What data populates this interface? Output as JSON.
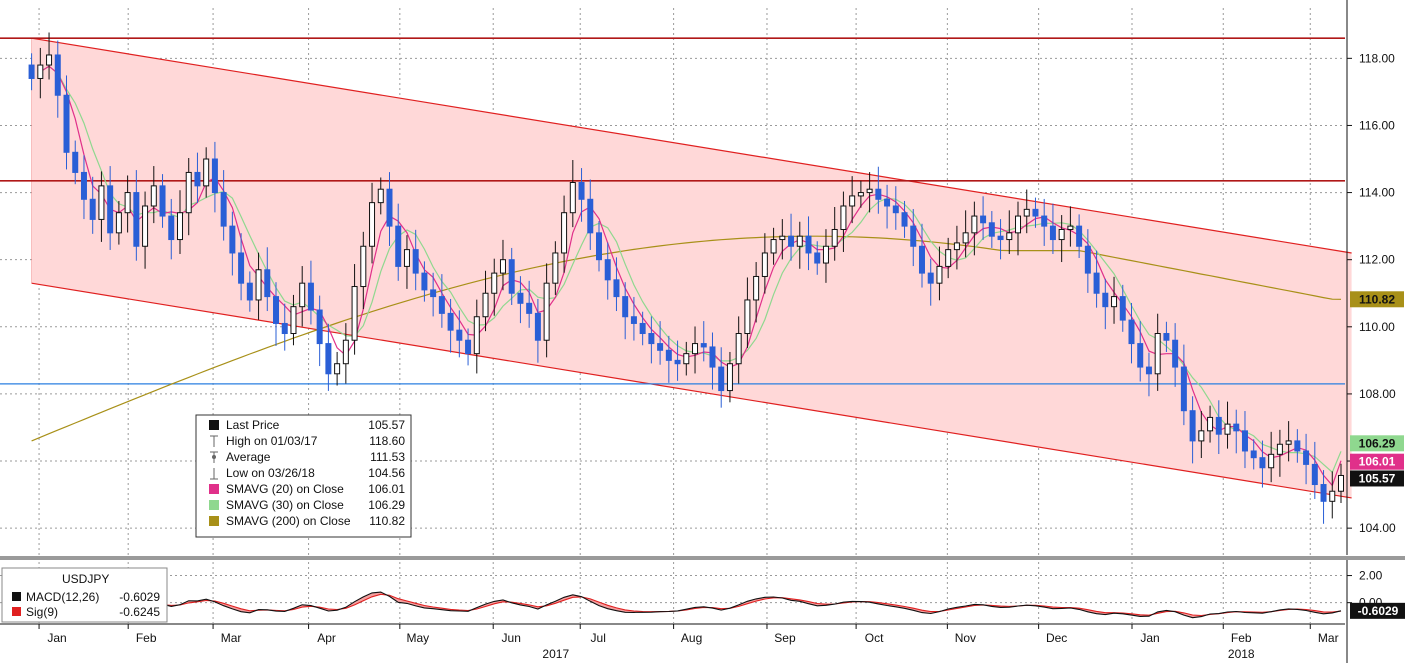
{
  "ticker": "USDJPY",
  "colors": {
    "channel_fill": "#ffd8d8",
    "channel_line": "#e02020",
    "resistance": "#b01818",
    "support": "#2a7fe0",
    "candle_up": "#111111",
    "candle_down": "#2a5fd6",
    "sma20": "#e0308a",
    "sma30": "#8fd88f",
    "sma200": "#a89018",
    "macd": "#111111",
    "signal": "#e02020",
    "macd_fill": "#f5a0a0"
  },
  "legend": {
    "items": [
      {
        "label": "Last Price",
        "value": "105.57",
        "icon": "black-square-icon",
        "swatch": "#111111"
      },
      {
        "label": "High on 01/03/17",
        "value": "118.60",
        "icon": "high-marker-icon",
        "swatch": ""
      },
      {
        "label": "Average",
        "value": "111.53",
        "icon": "average-marker-icon",
        "swatch": ""
      },
      {
        "label": "Low on 03/26/18",
        "value": "104.56",
        "icon": "low-marker-icon",
        "swatch": ""
      },
      {
        "label": "SMAVG (20) on Close",
        "value": "106.01",
        "icon": "pink-square-icon",
        "swatch": "#e0308a"
      },
      {
        "label": "SMAVG (30) on Close",
        "value": "106.29",
        "icon": "green-square-icon",
        "swatch": "#8fd88f"
      },
      {
        "label": "SMAVG (200) on Close",
        "value": "110.82",
        "icon": "olive-square-icon",
        "swatch": "#a89018"
      }
    ]
  },
  "macd_legend": {
    "title": "USDJPY",
    "items": [
      {
        "label": "MACD(12,26)",
        "value": "-0.6029",
        "swatch": "#111111"
      },
      {
        "label": "Sig(9)",
        "value": "-0.6245",
        "swatch": "#e02020"
      }
    ]
  },
  "price_tags": [
    {
      "value": 110.82,
      "label": "110.82",
      "bg": "#a89018",
      "fg": "#111111"
    },
    {
      "value": 106.29,
      "label": "106.29",
      "bg": "#8fd88f",
      "fg": "#111111"
    },
    {
      "value": 106.01,
      "label": "106.01",
      "bg": "#e0308a",
      "fg": "#ffffff"
    },
    {
      "value": 105.57,
      "label": "105.57",
      "bg": "#111111",
      "fg": "#ffffff"
    }
  ],
  "macd_tag": {
    "value": -0.6029,
    "label": "-0.6029"
  },
  "chart_data": [
    {
      "type": "candlestick",
      "title": "",
      "ylim": [
        103.2,
        119.5
      ],
      "y_ticks": [
        "104.00",
        "106.00",
        "108.00",
        "110.00",
        "112.00",
        "114.00",
        "116.00",
        "118.00"
      ],
      "y_tick_values": [
        104,
        106,
        108,
        110,
        112,
        114,
        116,
        118
      ],
      "x_range_weeks": [
        0,
        63
      ],
      "months": [
        {
          "label": "Jan",
          "week": 2.5
        },
        {
          "label": "Feb",
          "week": 6.7
        },
        {
          "label": "Mar",
          "week": 10.7
        },
        {
          "label": "Apr",
          "week": 15.2
        },
        {
          "label": "May",
          "week": 19.5
        },
        {
          "label": "Jun",
          "week": 23.9
        },
        {
          "label": "Jul",
          "week": 28.0
        },
        {
          "label": "Aug",
          "week": 32.4
        },
        {
          "label": "Sep",
          "week": 36.8
        },
        {
          "label": "Oct",
          "week": 41.0
        },
        {
          "label": "Nov",
          "week": 45.3
        },
        {
          "label": "Dec",
          "week": 49.6
        },
        {
          "label": "Jan",
          "week": 54.0
        },
        {
          "label": "Feb",
          "week": 58.3
        },
        {
          "label": "Mar",
          "week": 62.4
        }
      ],
      "years": [
        {
          "label": "2017",
          "week": 26.0
        },
        {
          "label": "2018",
          "week": 58.3
        }
      ],
      "resistance_lines": [
        118.6,
        114.35
      ],
      "support_line": 108.3,
      "channel": {
        "upper": [
          [
            1.3,
            118.6
          ],
          [
            63.5,
            112.2
          ]
        ],
        "lower": [
          [
            1.3,
            111.3
          ],
          [
            63.5,
            104.9
          ]
        ]
      },
      "closes": [
        117.4,
        117.8,
        118.1,
        116.9,
        115.2,
        114.6,
        113.8,
        113.2,
        114.2,
        112.8,
        113.4,
        114.0,
        112.4,
        113.6,
        114.2,
        113.3,
        112.6,
        113.4,
        114.6,
        114.2,
        115.0,
        114.0,
        113.0,
        112.2,
        111.3,
        110.8,
        111.7,
        110.9,
        110.1,
        109.8,
        110.6,
        111.3,
        110.5,
        109.5,
        108.6,
        108.9,
        109.6,
        111.2,
        112.4,
        113.7,
        114.1,
        113.0,
        111.8,
        112.3,
        111.6,
        111.1,
        110.9,
        110.4,
        109.9,
        109.6,
        109.2,
        110.3,
        111.0,
        111.6,
        112.0,
        111.0,
        110.7,
        110.4,
        109.6,
        111.3,
        112.2,
        113.4,
        114.3,
        113.8,
        112.8,
        112.0,
        111.4,
        110.9,
        110.3,
        110.1,
        109.8,
        109.5,
        109.3,
        109.0,
        108.9,
        109.2,
        109.5,
        109.4,
        108.8,
        108.1,
        108.9,
        109.8,
        110.8,
        111.5,
        112.2,
        112.6,
        112.7,
        112.4,
        112.7,
        112.2,
        111.9,
        112.4,
        112.9,
        113.6,
        113.9,
        114.0,
        114.1,
        113.8,
        113.6,
        113.4,
        113.0,
        112.4,
        111.6,
        111.3,
        111.8,
        112.3,
        112.5,
        112.8,
        113.3,
        113.1,
        112.7,
        112.6,
        112.8,
        113.3,
        113.5,
        113.3,
        113.0,
        112.6,
        112.9,
        113.0,
        112.4,
        111.6,
        111.0,
        110.6,
        110.9,
        110.2,
        109.5,
        108.8,
        108.6,
        109.8,
        109.6,
        108.8,
        107.5,
        106.6,
        106.9,
        107.3,
        106.8,
        107.1,
        106.9,
        106.3,
        106.1,
        105.8,
        106.2,
        106.5,
        106.6,
        106.3,
        105.9,
        105.3,
        104.8,
        105.1,
        105.57
      ],
      "sma20_value": 106.01,
      "sma30_value": 106.29,
      "sma200_value": 110.82
    },
    {
      "type": "line",
      "title": "USDJPY",
      "series": [
        {
          "name": "MACD(12,26)",
          "last": -0.6029
        },
        {
          "name": "Sig(9)",
          "last": -0.6245
        }
      ],
      "ylim": [
        -1.5,
        3.0
      ],
      "y_ticks": [
        "2.00",
        "0.00"
      ],
      "y_tick_values": [
        2,
        0
      ]
    }
  ]
}
